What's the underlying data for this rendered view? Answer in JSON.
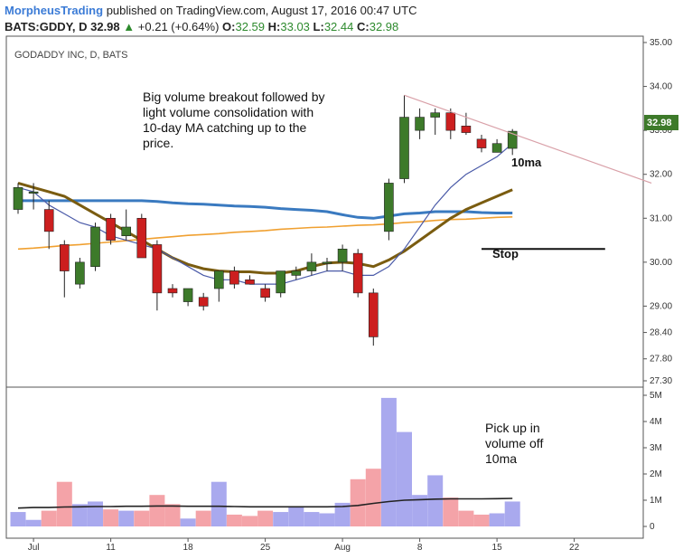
{
  "header": {
    "publisher": "MorpheusTrading",
    "published_text": "published on TradingView.com, August 17, 2016 00:47 UTC",
    "symbol": "BATS:GDDY, D",
    "last": "32.98",
    "change_arrow": "▲",
    "change": "+0.21 (+0.64%)",
    "o_label": "O:",
    "o": "32.59",
    "h_label": "H:",
    "h": "33.03",
    "l_label": "L:",
    "l": "32.44",
    "c_label": "C:",
    "c": "32.98"
  },
  "chart_data": [
    {
      "type": "candlestick",
      "title": "GODADDY INC, D, BATS",
      "ylim": [
        27.0,
        35.0
      ],
      "y_ticks": [
        "35.00",
        "34.00",
        "33.00",
        "32.00",
        "31.00",
        "30.00",
        "29.00",
        "28.40",
        "27.80",
        "27.30"
      ],
      "y_tick_values": [
        35.0,
        34.0,
        33.0,
        32.0,
        31.0,
        30.0,
        29.0,
        28.4,
        27.8,
        27.3
      ],
      "last_price_label": "32.98",
      "x_ticks": [
        "Jul",
        "11",
        "18",
        "25",
        "Aug",
        "8",
        "15",
        "22"
      ],
      "x_tick_index": [
        1,
        6,
        11,
        16,
        21,
        26,
        31,
        36
      ],
      "candles": [
        {
          "o": 31.2,
          "h": 31.8,
          "l": 31.1,
          "c": 31.7
        },
        {
          "o": 31.6,
          "h": 31.8,
          "l": 31.2,
          "c": 31.6
        },
        {
          "o": 31.2,
          "h": 31.4,
          "l": 30.3,
          "c": 30.7
        },
        {
          "o": 30.4,
          "h": 30.5,
          "l": 29.2,
          "c": 29.8
        },
        {
          "o": 29.5,
          "h": 30.1,
          "l": 29.4,
          "c": 30.0
        },
        {
          "o": 29.9,
          "h": 30.9,
          "l": 29.8,
          "c": 30.8
        },
        {
          "o": 31.0,
          "h": 31.1,
          "l": 30.4,
          "c": 30.5
        },
        {
          "o": 30.6,
          "h": 31.2,
          "l": 30.5,
          "c": 30.8
        },
        {
          "o": 31.0,
          "h": 31.1,
          "l": 30.1,
          "c": 30.1
        },
        {
          "o": 30.4,
          "h": 30.5,
          "l": 28.9,
          "c": 29.3
        },
        {
          "o": 29.4,
          "h": 29.5,
          "l": 29.2,
          "c": 29.3
        },
        {
          "o": 29.1,
          "h": 29.4,
          "l": 29.0,
          "c": 29.4
        },
        {
          "o": 29.2,
          "h": 29.3,
          "l": 28.9,
          "c": 29.0
        },
        {
          "o": 29.4,
          "h": 29.8,
          "l": 29.1,
          "c": 29.8
        },
        {
          "o": 29.8,
          "h": 29.9,
          "l": 29.4,
          "c": 29.5
        },
        {
          "o": 29.6,
          "h": 29.7,
          "l": 29.5,
          "c": 29.5
        },
        {
          "o": 29.4,
          "h": 29.5,
          "l": 29.1,
          "c": 29.2
        },
        {
          "o": 29.3,
          "h": 29.8,
          "l": 29.2,
          "c": 29.8
        },
        {
          "o": 29.7,
          "h": 29.9,
          "l": 29.6,
          "c": 29.8
        },
        {
          "o": 29.8,
          "h": 30.2,
          "l": 29.7,
          "c": 30.0
        },
        {
          "o": 30.0,
          "h": 30.1,
          "l": 29.8,
          "c": 30.0
        },
        {
          "o": 30.0,
          "h": 30.4,
          "l": 29.8,
          "c": 30.3
        },
        {
          "o": 30.2,
          "h": 30.3,
          "l": 29.2,
          "c": 29.3
        },
        {
          "o": 29.3,
          "h": 29.4,
          "l": 28.1,
          "c": 28.3
        },
        {
          "o": 30.7,
          "h": 31.9,
          "l": 30.5,
          "c": 31.8
        },
        {
          "o": 31.9,
          "h": 33.8,
          "l": 31.8,
          "c": 33.3
        },
        {
          "o": 33.0,
          "h": 33.5,
          "l": 32.8,
          "c": 33.3
        },
        {
          "o": 33.3,
          "h": 33.5,
          "l": 32.9,
          "c": 33.4
        },
        {
          "o": 33.4,
          "h": 33.5,
          "l": 32.8,
          "c": 33.0
        },
        {
          "o": 33.1,
          "h": 33.4,
          "l": 32.9,
          "c": 32.95
        },
        {
          "o": 32.8,
          "h": 32.9,
          "l": 32.5,
          "c": 32.6
        },
        {
          "o": 32.5,
          "h": 32.8,
          "l": 32.5,
          "c": 32.7
        },
        {
          "o": 32.59,
          "h": 33.03,
          "l": 32.44,
          "c": 32.98
        }
      ],
      "ma10": [
        31.7,
        31.6,
        31.3,
        31.1,
        30.9,
        30.8,
        30.6,
        30.5,
        30.4,
        30.3,
        30.1,
        29.9,
        29.7,
        29.6,
        29.6,
        29.5,
        29.5,
        29.5,
        29.6,
        29.7,
        29.8,
        29.8,
        29.7,
        29.7,
        29.9,
        30.3,
        30.8,
        31.3,
        31.7,
        32.0,
        32.2,
        32.4,
        32.7
      ],
      "ma20": [
        31.8,
        31.7,
        31.6,
        31.5,
        31.3,
        31.1,
        30.9,
        30.7,
        30.5,
        30.3,
        30.1,
        29.95,
        29.85,
        29.8,
        29.78,
        29.78,
        29.75,
        29.75,
        29.8,
        29.9,
        29.98,
        30.0,
        29.97,
        29.9,
        30.05,
        30.25,
        30.5,
        30.75,
        31.0,
        31.2,
        31.35,
        31.5,
        31.65
      ],
      "ma50": [
        31.4,
        31.4,
        31.4,
        31.4,
        31.4,
        31.4,
        31.4,
        31.4,
        31.4,
        31.38,
        31.35,
        31.33,
        31.32,
        31.3,
        31.28,
        31.27,
        31.25,
        31.22,
        31.2,
        31.18,
        31.15,
        31.08,
        31.02,
        31.0,
        31.05,
        31.1,
        31.12,
        31.15,
        31.15,
        31.15,
        31.13,
        31.12,
        31.12
      ],
      "ma200": [
        30.3,
        30.32,
        30.35,
        30.38,
        30.4,
        30.43,
        30.46,
        30.49,
        30.52,
        30.55,
        30.58,
        30.61,
        30.63,
        30.65,
        30.68,
        30.7,
        30.72,
        30.75,
        30.77,
        30.79,
        30.8,
        30.82,
        30.84,
        30.85,
        30.87,
        30.9,
        30.92,
        30.95,
        30.97,
        30.98,
        31.0,
        31.02,
        31.03
      ],
      "trendline": [
        {
          "i": 25,
          "y": 33.8
        },
        {
          "i": 41,
          "y": 31.8
        }
      ],
      "stop_line": {
        "y": 30.3,
        "from": 30,
        "to": 38
      },
      "annotations": {
        "breakout_lines": [
          "Big volume breakout followed by",
          "light volume consolidation with",
          "10-day MA catching up to the",
          "price."
        ],
        "ma_label": "10ma",
        "stop_label": "Stop"
      }
    },
    {
      "type": "bar",
      "title": "",
      "ylim": [
        0,
        5.0
      ],
      "y_ticks": [
        "5M",
        "4M",
        "3M",
        "2M",
        "1M",
        "0"
      ],
      "y_tick_values": [
        5,
        4,
        3,
        2,
        1,
        0
      ],
      "volumes": [
        0.55,
        0.25,
        0.6,
        1.7,
        0.85,
        0.95,
        0.65,
        0.6,
        0.6,
        1.2,
        0.85,
        0.3,
        0.6,
        1.7,
        0.45,
        0.4,
        0.6,
        0.55,
        0.75,
        0.55,
        0.5,
        0.9,
        1.8,
        2.2,
        4.9,
        3.6,
        1.2,
        1.95,
        1.1,
        0.6,
        0.45,
        0.5,
        0.95
      ],
      "volume_ma": [
        0.7,
        0.72,
        0.72,
        0.74,
        0.75,
        0.76,
        0.76,
        0.77,
        0.77,
        0.78,
        0.78,
        0.77,
        0.77,
        0.77,
        0.76,
        0.75,
        0.75,
        0.75,
        0.75,
        0.75,
        0.75,
        0.76,
        0.8,
        0.88,
        0.95,
        1.0,
        1.02,
        1.04,
        1.05,
        1.05,
        1.05,
        1.06,
        1.07
      ],
      "annotations": {
        "volume_lines": [
          "Pick up in",
          "volume off",
          "10ma"
        ]
      }
    }
  ],
  "colors": {
    "up": "#3d7a2a",
    "down": "#cc1f1f",
    "vol_up": "#a9a9ee",
    "vol_down": "#f4a3a8",
    "ma10": "#4a5aa8",
    "ma20": "#7a5c10",
    "ma50": "#3a7ac0",
    "ma200": "#f0a030",
    "trend": "#d9a0a8",
    "border": "#555555"
  }
}
